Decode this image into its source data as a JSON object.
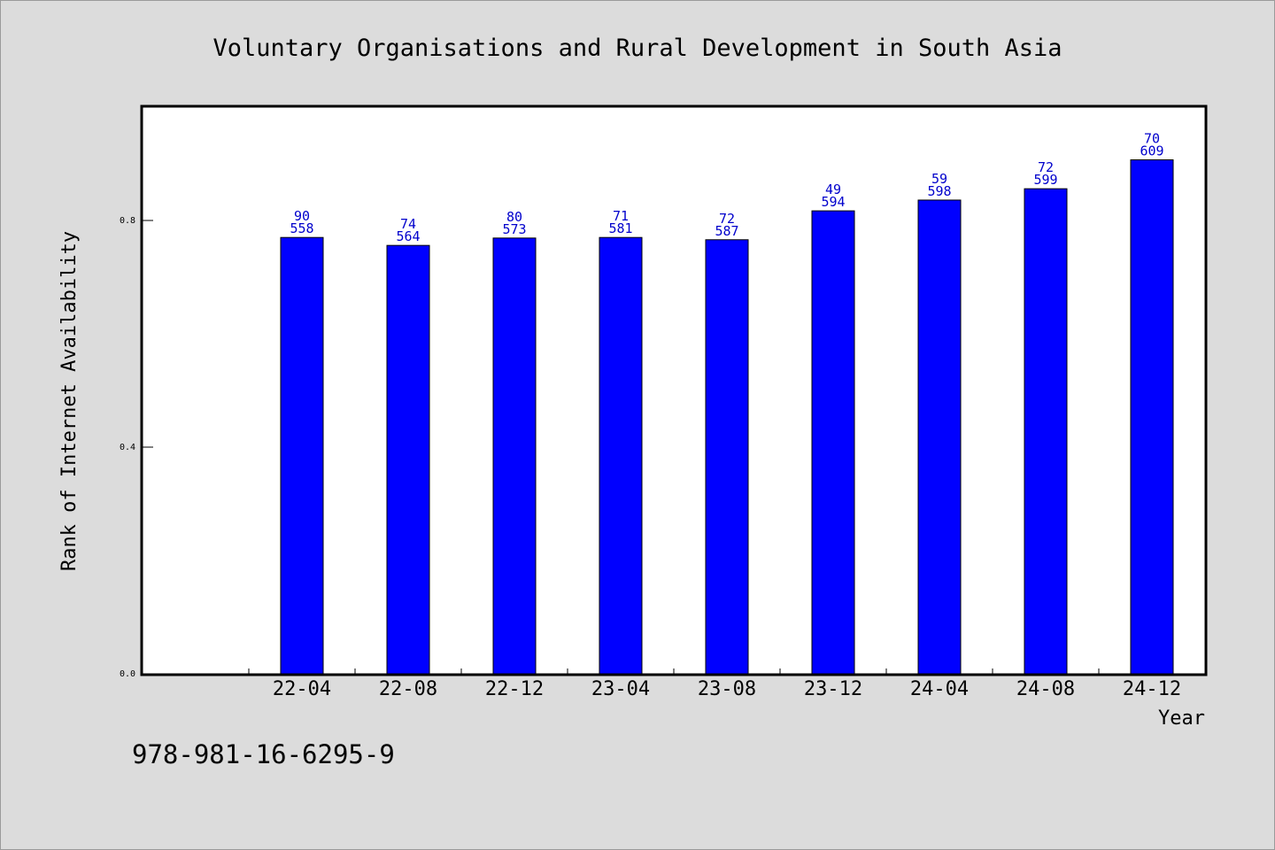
{
  "chart_data": {
    "type": "bar",
    "title": "Voluntary Organisations and Rural Development in South Asia",
    "xlabel": "Year",
    "ylabel": "Rank of Internet Availability",
    "categories": [
      "22-04",
      "22-08",
      "22-12",
      "23-04",
      "23-08",
      "23-12",
      "24-04",
      "24-08",
      "24-12"
    ],
    "values": [
      0.77,
      0.756,
      0.769,
      0.77,
      0.766,
      0.817,
      0.836,
      0.856,
      0.907
    ],
    "data_labels_top": [
      "90",
      "74",
      "80",
      "71",
      "72",
      "49",
      "59",
      "72",
      "70"
    ],
    "data_labels_bottom": [
      "558",
      "564",
      "573",
      "581",
      "587",
      "594",
      "598",
      "599",
      "609"
    ],
    "yticks": [
      "0.0",
      "0.4",
      "0.8"
    ],
    "ytick_values": [
      0.0,
      0.4,
      0.8
    ],
    "ylim": [
      0.0,
      1.0
    ],
    "grid": false,
    "bar_color": "#0000ff",
    "label_color": "#0000cc"
  },
  "footer": {
    "isbn": "978-981-16-6295-9"
  }
}
